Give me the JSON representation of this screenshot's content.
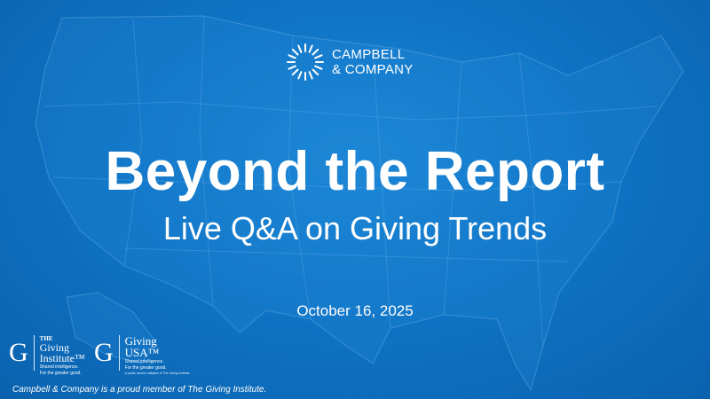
{
  "brand": {
    "name_line1": "CAMPBELL",
    "name_line2": "& COMPANY",
    "logo_icon": "sunburst-ring-icon"
  },
  "slide": {
    "title": "Beyond the Report",
    "subtitle": "Live Q&A on Giving Trends",
    "date": "October 16, 2025"
  },
  "partners": {
    "giving_institute": {
      "letter": "G",
      "line1": "THE",
      "line2": "Giving",
      "line3": "Institute™",
      "tagline1": "Shared intelligence.",
      "tagline2": "For the greater good."
    },
    "giving_usa": {
      "letter": "G",
      "line1": "Giving",
      "line2": "USA™",
      "tagline1": "Shared intelligence.",
      "tagline2": "For the greater good.",
      "tagline3": "A public service initiative of The Giving Institute"
    }
  },
  "footer": {
    "text": "Campbell & Company is a proud member of The Giving Institute."
  },
  "colors": {
    "background": "#0f74c6",
    "background_dark": "#0a62ae",
    "text": "#ffffff"
  }
}
